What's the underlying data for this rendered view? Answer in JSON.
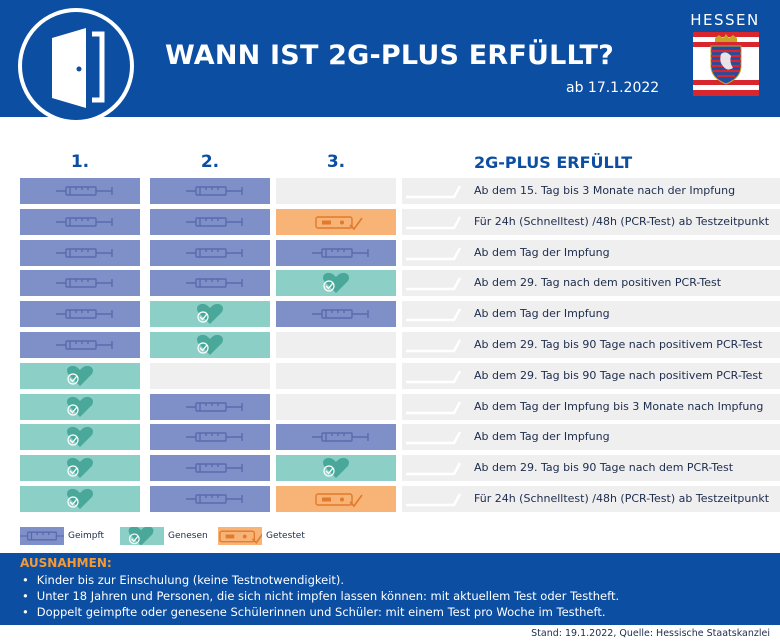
{
  "header": {
    "title": "WANN IST 2G-PLUS ERFÜLLT?",
    "date": "ab 17.1.2022",
    "state": "HESSEN"
  },
  "columns": {
    "c1": "1.",
    "c2": "2.",
    "c3": "3.",
    "result": "2G-PLUS ERFÜLLT"
  },
  "rows": [
    {
      "cells": [
        "geimpft",
        "geimpft",
        "leer"
      ],
      "text": "Ab dem 15. Tag bis 3 Monate nach der Impfung"
    },
    {
      "cells": [
        "geimpft",
        "geimpft",
        "getestet"
      ],
      "text": "Für 24h (Schnelltest) /48h (PCR-Test) ab Testzeitpunkt"
    },
    {
      "cells": [
        "geimpft",
        "geimpft",
        "geimpft"
      ],
      "text": "Ab dem Tag der Impfung"
    },
    {
      "cells": [
        "geimpft",
        "geimpft",
        "genesen"
      ],
      "text": "Ab dem 29. Tag nach dem positiven PCR-Test"
    },
    {
      "cells": [
        "geimpft",
        "genesen",
        "geimpft"
      ],
      "text": "Ab dem Tag der Impfung"
    },
    {
      "cells": [
        "geimpft",
        "genesen",
        "leer"
      ],
      "text": "Ab dem 29. Tag bis 90 Tage nach positivem PCR-Test"
    },
    {
      "cells": [
        "genesen",
        "leer",
        "leer"
      ],
      "text": "Ab dem 29. Tag bis 90 Tage nach positivem PCR-Test"
    },
    {
      "cells": [
        "genesen",
        "geimpft",
        "leer"
      ],
      "text": "Ab dem Tag der Impfung bis 3 Monate nach Impfung"
    },
    {
      "cells": [
        "genesen",
        "geimpft",
        "geimpft"
      ],
      "text": "Ab dem Tag der Impfung"
    },
    {
      "cells": [
        "genesen",
        "geimpft",
        "genesen"
      ],
      "text": "Ab dem 29. Tag bis 90 Tage nach dem PCR-Test"
    },
    {
      "cells": [
        "genesen",
        "geimpft",
        "getestet"
      ],
      "text": "Für 24h (Schnelltest) /48h (PCR-Test) ab Testzeitpunkt"
    }
  ],
  "legend": {
    "geimpft": "Geimpft",
    "genesen": "Genesen",
    "getestet": "Getestet"
  },
  "icons": {
    "geimpft": "syringe-icon",
    "genesen": "heart-check-icon",
    "getestet": "test-strip-icon",
    "header": "door-icon"
  },
  "colors": {
    "brand_blue": "#0b4ea2",
    "geimpft": "#7f8fc8",
    "genesen": "#8ccfc6",
    "getestet": "#f8b377",
    "empty": "#efeff0",
    "exceptions_title": "#f39a36"
  },
  "exceptions": {
    "title": "AUSNAHMEN:",
    "items": [
      "Kinder bis zur Einschulung (keine Testnotwendigkeit).",
      "Unter 18 Jahren und Personen, die sich nicht impfen lassen können: mit aktuellem Test oder Testheft.",
      "Doppelt geimpfte oder genesene Schülerinnen und Schüler: mit einem Test pro Woche im Testheft."
    ]
  },
  "footer": {
    "source": "Stand: 19.1.2022, Quelle: Hessische Staatskanzlei"
  }
}
